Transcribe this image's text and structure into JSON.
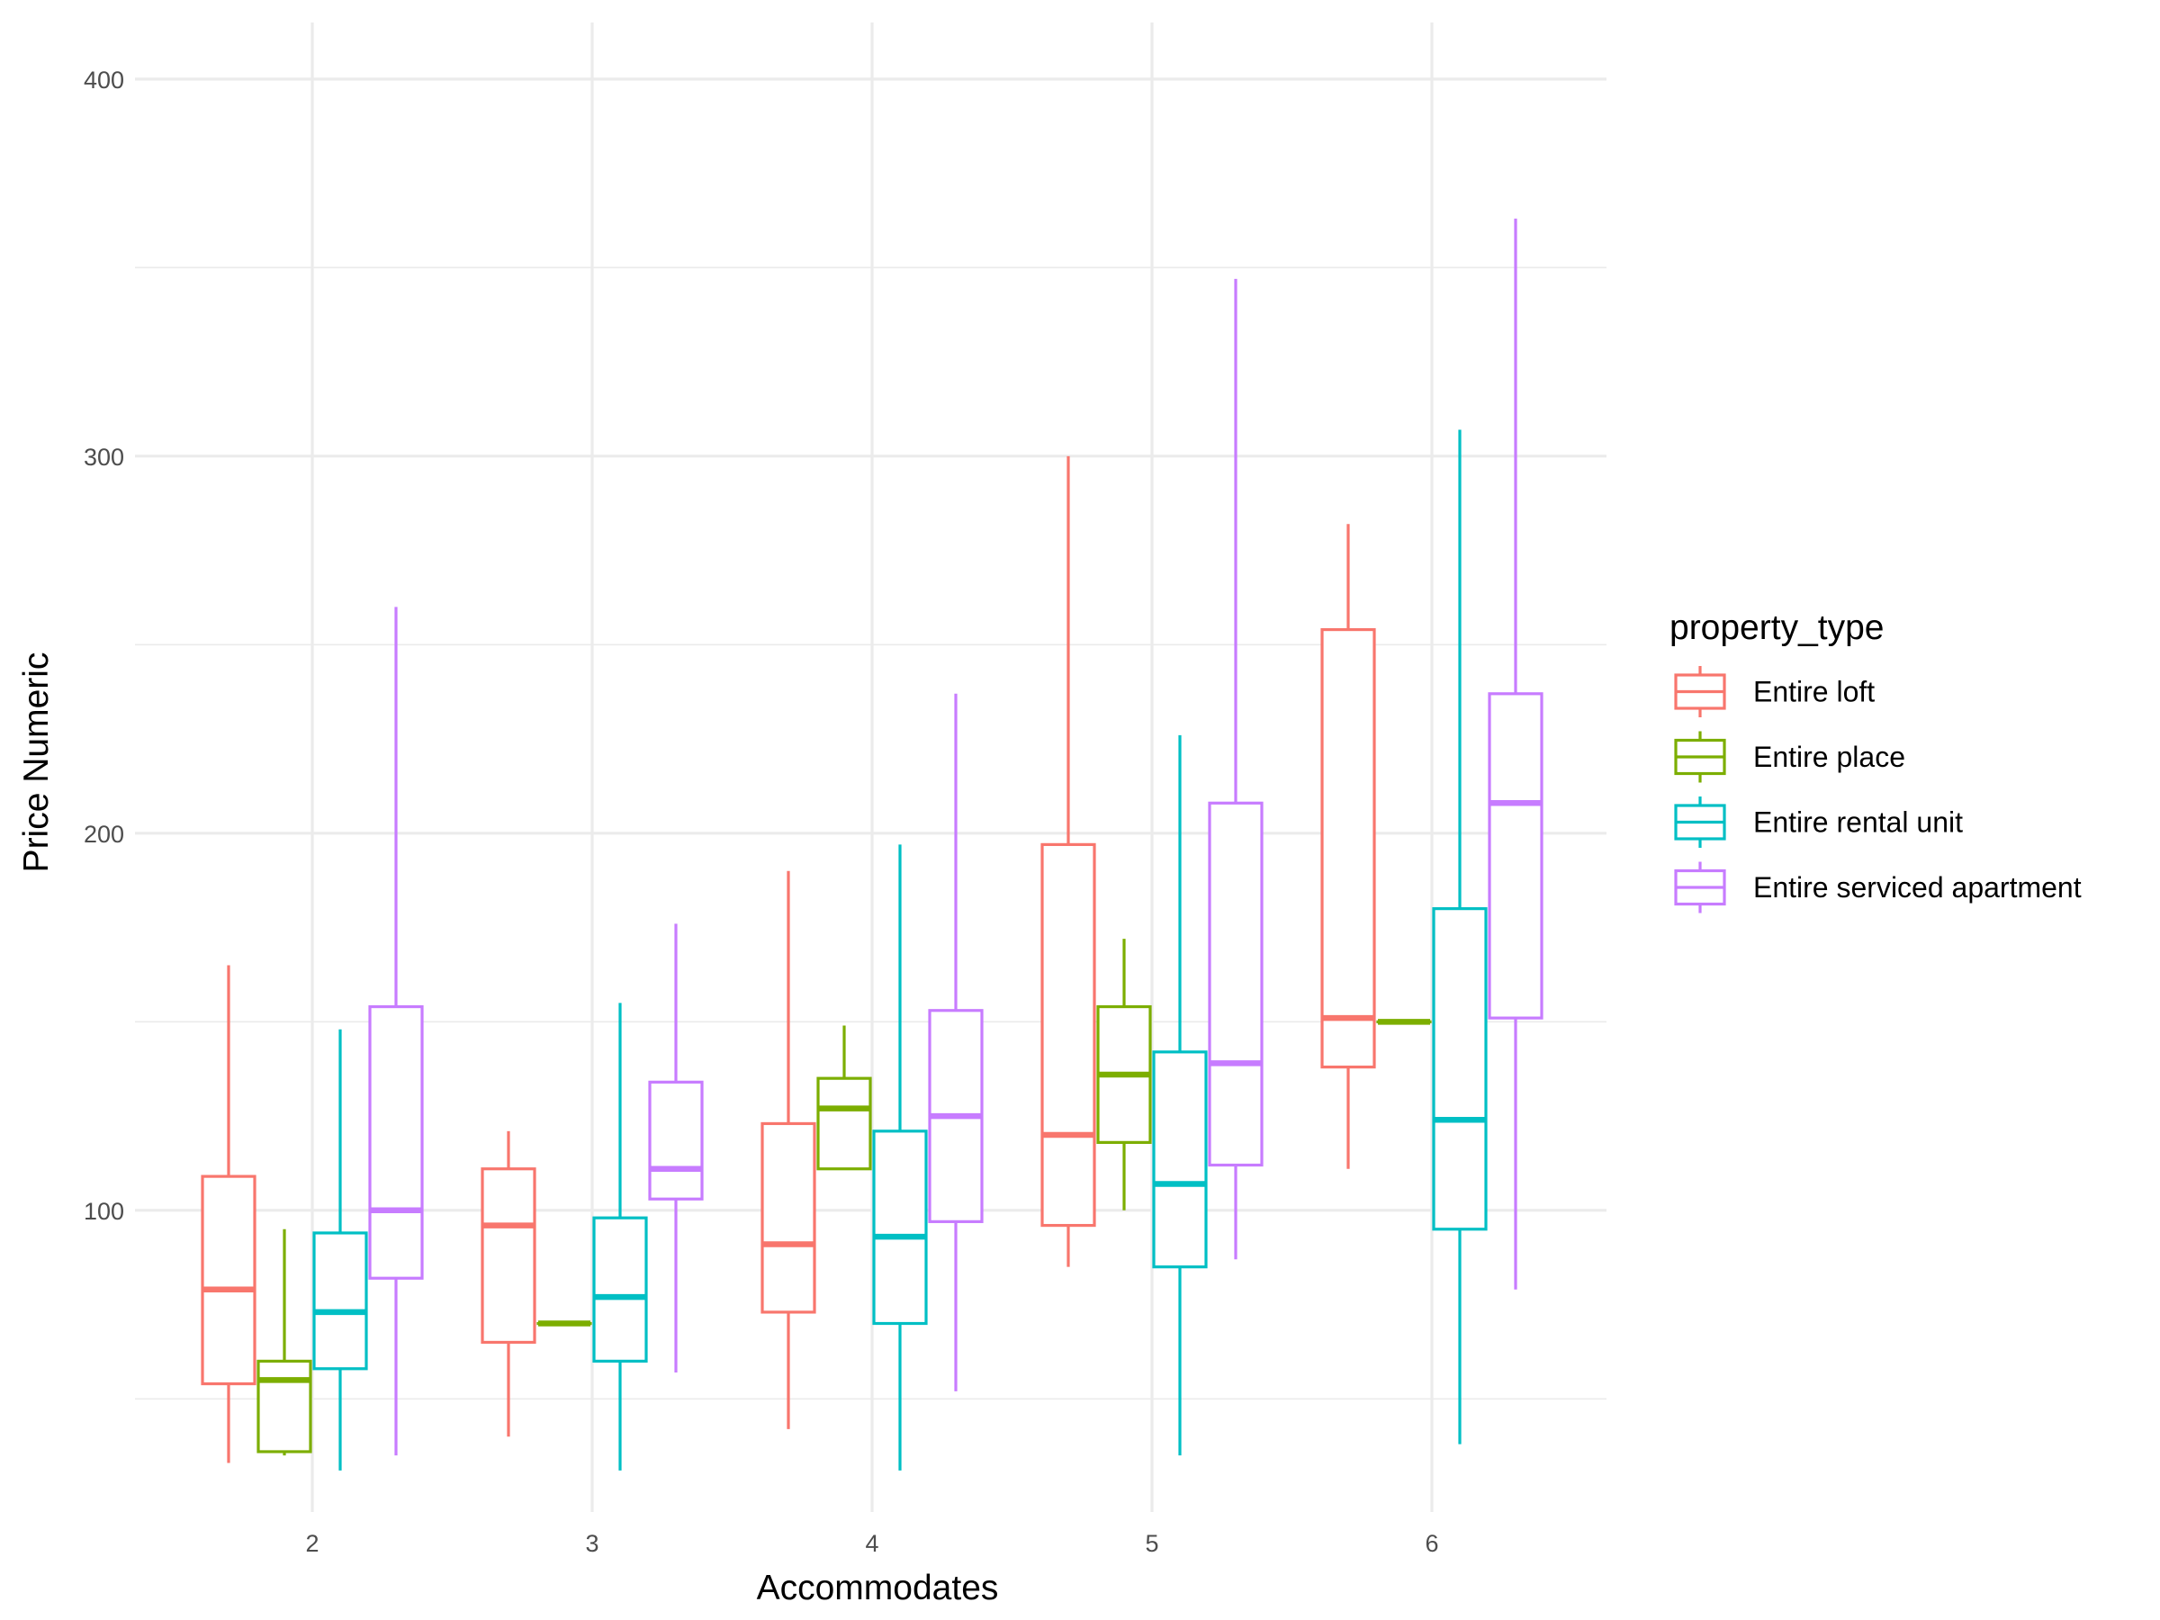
{
  "chart_data": {
    "type": "boxplot",
    "xlabel": "Accommodates",
    "ylabel": "Price Numeric",
    "categories": [
      "2",
      "3",
      "4",
      "5",
      "6"
    ],
    "y_ticks": [
      100,
      200,
      300,
      400
    ],
    "ylim": [
      20,
      415
    ],
    "grid": true,
    "legend": {
      "title": "property_type",
      "position": "right"
    },
    "series": [
      {
        "name": "Entire loft",
        "color": "#F8766D",
        "boxes": [
          {
            "x": "2",
            "min": 33,
            "q1": 54,
            "median": 79,
            "q3": 109,
            "max": 165
          },
          {
            "x": "3",
            "min": 40,
            "q1": 65,
            "median": 96,
            "q3": 111,
            "max": 121
          },
          {
            "x": "4",
            "min": 42,
            "q1": 73,
            "median": 91,
            "q3": 123,
            "max": 190
          },
          {
            "x": "5",
            "min": 85,
            "q1": 96,
            "median": 120,
            "q3": 197,
            "max": 300
          },
          {
            "x": "6",
            "min": 111,
            "q1": 138,
            "median": 151,
            "q3": 254,
            "max": 282
          }
        ]
      },
      {
        "name": "Entire place",
        "color": "#7CAE00",
        "boxes": [
          {
            "x": "2",
            "min": 35,
            "q1": 36,
            "median": 55,
            "q3": 60,
            "max": 95
          },
          {
            "x": "3",
            "min": 70,
            "q1": 70,
            "median": 70,
            "q3": 70,
            "max": 70
          },
          {
            "x": "4",
            "min": 111,
            "q1": 111,
            "median": 127,
            "q3": 135,
            "max": 149
          },
          {
            "x": "5",
            "min": 100,
            "q1": 118,
            "median": 136,
            "q3": 154,
            "max": 172
          },
          {
            "x": "6",
            "min": 150,
            "q1": 150,
            "median": 150,
            "q3": 150,
            "max": 150
          }
        ]
      },
      {
        "name": "Entire rental unit",
        "color": "#00BFC4",
        "boxes": [
          {
            "x": "2",
            "min": 31,
            "q1": 58,
            "median": 73,
            "q3": 94,
            "max": 148
          },
          {
            "x": "3",
            "min": 31,
            "q1": 60,
            "median": 77,
            "q3": 98,
            "max": 155
          },
          {
            "x": "4",
            "min": 31,
            "q1": 70,
            "median": 93,
            "q3": 121,
            "max": 197
          },
          {
            "x": "5",
            "min": 35,
            "q1": 85,
            "median": 107,
            "q3": 142,
            "max": 226
          },
          {
            "x": "6",
            "min": 38,
            "q1": 95,
            "median": 124,
            "q3": 180,
            "max": 307
          }
        ]
      },
      {
        "name": "Entire serviced apartment",
        "color": "#C77CFF",
        "boxes": [
          {
            "x": "2",
            "min": 35,
            "q1": 82,
            "median": 100,
            "q3": 154,
            "max": 260
          },
          {
            "x": "3",
            "min": 57,
            "q1": 103,
            "median": 111,
            "q3": 134,
            "max": 176
          },
          {
            "x": "4",
            "min": 52,
            "q1": 97,
            "median": 125,
            "q3": 153,
            "max": 237
          },
          {
            "x": "5",
            "min": 87,
            "q1": 112,
            "median": 139,
            "q3": 208,
            "max": 347
          },
          {
            "x": "6",
            "min": 79,
            "q1": 151,
            "median": 208,
            "q3": 237,
            "max": 363
          }
        ]
      }
    ]
  }
}
